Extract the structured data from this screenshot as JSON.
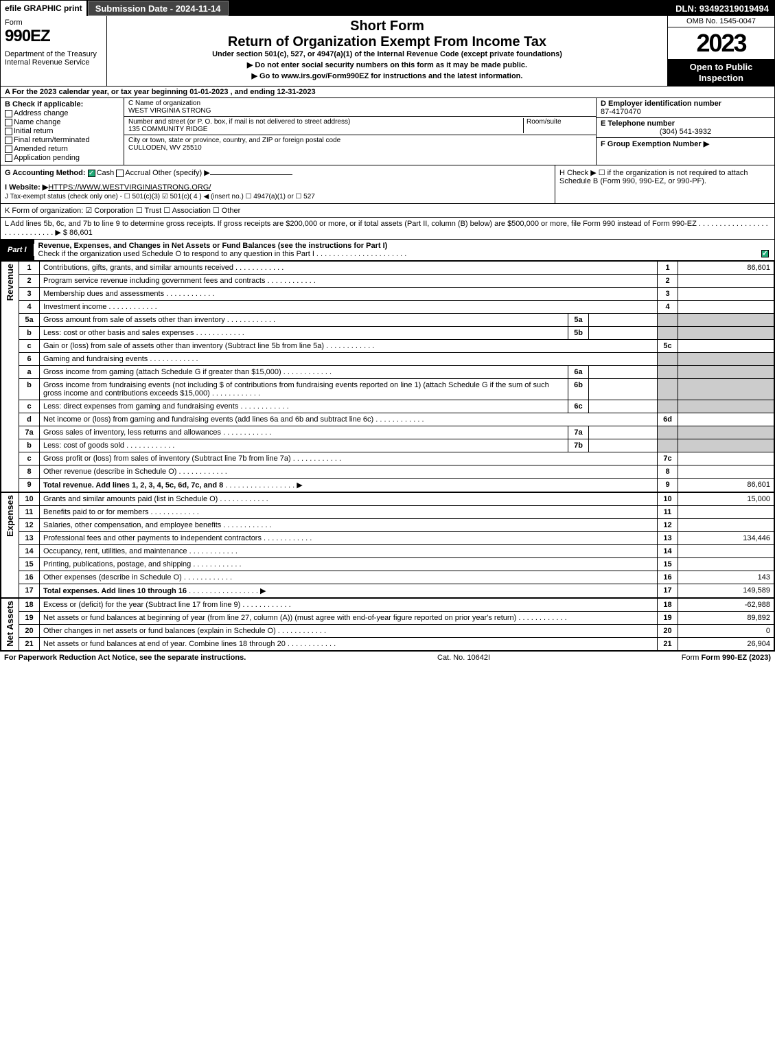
{
  "topbar": {
    "efile": "efile GRAPHIC print",
    "submission": "Submission Date - 2024-11-14",
    "dln": "DLN: 93492319019494"
  },
  "header": {
    "form_label": "Form",
    "form_number": "990EZ",
    "dept": "Department of the Treasury\nInternal Revenue Service",
    "short_form": "Short Form",
    "title": "Return of Organization Exempt From Income Tax",
    "subtitle": "Under section 501(c), 527, or 4947(a)(1) of the Internal Revenue Code (except private foundations)",
    "instr1": "▶ Do not enter social security numbers on this form as it may be made public.",
    "instr2": "▶ Go to www.irs.gov/Form990EZ for instructions and the latest information.",
    "omb": "OMB No. 1545-0047",
    "year": "2023",
    "inspect": "Open to Public Inspection"
  },
  "line_a": "A  For the 2023 calendar year, or tax year beginning 01-01-2023 , and ending 12-31-2023",
  "block_b": {
    "label": "B  Check if applicable:",
    "items": [
      "Address change",
      "Name change",
      "Initial return",
      "Final return/terminated",
      "Amended return",
      "Application pending"
    ]
  },
  "block_c": {
    "name_label": "C Name of organization",
    "name": "WEST VIRGINIA STRONG",
    "street_label": "Number and street (or P. O. box, if mail is not delivered to street address)",
    "room_label": "Room/suite",
    "street": "135 COMMUNITY RIDGE",
    "city_label": "City or town, state or province, country, and ZIP or foreign postal code",
    "city": "CULLODEN, WV  25510"
  },
  "block_d": {
    "label": "D Employer identification number",
    "value": "87-4170470"
  },
  "block_e": {
    "label": "E Telephone number",
    "value": "(304) 541-3932"
  },
  "block_f": {
    "label": "F Group Exemption Number  ▶"
  },
  "line_g": {
    "label": "G Accounting Method:",
    "cash": "Cash",
    "accrual": "Accrual",
    "other": "Other (specify) ▶"
  },
  "line_h": "H  Check ▶  ☐  if the organization is not required to attach Schedule B (Form 990, 990-EZ, or 990-PF).",
  "line_i_label": "I Website: ▶",
  "line_i_value": "HTTPS://WWW.WESTVIRGINIASTRONG.ORG/",
  "line_j": "J Tax-exempt status (check only one) -  ☐ 501(c)(3)  ☑ 501(c)( 4 ) ◀ (insert no.)  ☐ 4947(a)(1) or  ☐ 527",
  "line_k": "K Form of organization:   ☑ Corporation   ☐ Trust   ☐ Association   ☐ Other",
  "line_l": "L Add lines 5b, 6c, and 7b to line 9 to determine gross receipts. If gross receipts are $200,000 or more, or if total assets (Part II, column (B) below) are $500,000 or more, file Form 990 instead of Form 990-EZ . . . . . . . . . . . . . . . . . . . . . . . . . . . . . ▶ $ 86,601",
  "part1": {
    "tag": "Part I",
    "title": "Revenue, Expenses, and Changes in Net Assets or Fund Balances (see the instructions for Part I)",
    "check_line": "Check if the organization used Schedule O to respond to any question in this Part I . . . . . . . . . . . . . . . . . . . . . .",
    "checked": true
  },
  "sections": {
    "revenue": "Revenue",
    "expenses": "Expenses",
    "netassets": "Net Assets"
  },
  "lines": [
    {
      "n": "1",
      "desc": "Contributions, gifts, grants, and similar amounts received",
      "r": "1",
      "amt": "86,601"
    },
    {
      "n": "2",
      "desc": "Program service revenue including government fees and contracts",
      "r": "2",
      "amt": ""
    },
    {
      "n": "3",
      "desc": "Membership dues and assessments",
      "r": "3",
      "amt": ""
    },
    {
      "n": "4",
      "desc": "Investment income",
      "r": "4",
      "amt": ""
    },
    {
      "n": "5a",
      "desc": "Gross amount from sale of assets other than inventory",
      "in": "5a",
      "inval": "",
      "shadeR": true
    },
    {
      "n": "b",
      "desc": "Less: cost or other basis and sales expenses",
      "in": "5b",
      "inval": "",
      "shadeR": true
    },
    {
      "n": "c",
      "desc": "Gain or (loss) from sale of assets other than inventory (Subtract line 5b from line 5a)",
      "r": "5c",
      "amt": ""
    },
    {
      "n": "6",
      "desc": "Gaming and fundraising events",
      "shadeR": true,
      "noR": true
    },
    {
      "n": "a",
      "desc": "Gross income from gaming (attach Schedule G if greater than $15,000)",
      "in": "6a",
      "inval": "",
      "shadeR": true
    },
    {
      "n": "b",
      "desc": "Gross income from fundraising events (not including $                 of contributions from fundraising events reported on line 1) (attach Schedule G if the sum of such gross income and contributions exceeds $15,000)",
      "in": "6b",
      "inval": "",
      "shadeR": true
    },
    {
      "n": "c",
      "desc": "Less: direct expenses from gaming and fundraising events",
      "in": "6c",
      "inval": "",
      "shadeR": true
    },
    {
      "n": "d",
      "desc": "Net income or (loss) from gaming and fundraising events (add lines 6a and 6b and subtract line 6c)",
      "r": "6d",
      "amt": ""
    },
    {
      "n": "7a",
      "desc": "Gross sales of inventory, less returns and allowances",
      "in": "7a",
      "inval": "",
      "shadeR": true
    },
    {
      "n": "b",
      "desc": "Less: cost of goods sold",
      "in": "7b",
      "inval": "",
      "shadeR": true
    },
    {
      "n": "c",
      "desc": "Gross profit or (loss) from sales of inventory (Subtract line 7b from line 7a)",
      "r": "7c",
      "amt": ""
    },
    {
      "n": "8",
      "desc": "Other revenue (describe in Schedule O)",
      "r": "8",
      "amt": ""
    },
    {
      "n": "9",
      "desc": "Total revenue. Add lines 1, 2, 3, 4, 5c, 6d, 7c, and 8",
      "r": "9",
      "amt": "86,601",
      "bold": true,
      "arrow": true
    }
  ],
  "expenses_lines": [
    {
      "n": "10",
      "desc": "Grants and similar amounts paid (list in Schedule O)",
      "r": "10",
      "amt": "15,000"
    },
    {
      "n": "11",
      "desc": "Benefits paid to or for members",
      "r": "11",
      "amt": ""
    },
    {
      "n": "12",
      "desc": "Salaries, other compensation, and employee benefits",
      "r": "12",
      "amt": ""
    },
    {
      "n": "13",
      "desc": "Professional fees and other payments to independent contractors",
      "r": "13",
      "amt": "134,446"
    },
    {
      "n": "14",
      "desc": "Occupancy, rent, utilities, and maintenance",
      "r": "14",
      "amt": ""
    },
    {
      "n": "15",
      "desc": "Printing, publications, postage, and shipping",
      "r": "15",
      "amt": ""
    },
    {
      "n": "16",
      "desc": "Other expenses (describe in Schedule O)",
      "r": "16",
      "amt": "143"
    },
    {
      "n": "17",
      "desc": "Total expenses. Add lines 10 through 16",
      "r": "17",
      "amt": "149,589",
      "bold": true,
      "arrow": true
    }
  ],
  "netassets_lines": [
    {
      "n": "18",
      "desc": "Excess or (deficit) for the year (Subtract line 17 from line 9)",
      "r": "18",
      "amt": "-62,988"
    },
    {
      "n": "19",
      "desc": "Net assets or fund balances at beginning of year (from line 27, column (A)) (must agree with end-of-year figure reported on prior year's return)",
      "r": "19",
      "amt": "89,892"
    },
    {
      "n": "20",
      "desc": "Other changes in net assets or fund balances (explain in Schedule O)",
      "r": "20",
      "amt": "0"
    },
    {
      "n": "21",
      "desc": "Net assets or fund balances at end of year. Combine lines 18 through 20",
      "r": "21",
      "amt": "26,904"
    }
  ],
  "footer": {
    "left": "For Paperwork Reduction Act Notice, see the separate instructions.",
    "center": "Cat. No. 10642I",
    "right": "Form 990-EZ (2023)"
  }
}
